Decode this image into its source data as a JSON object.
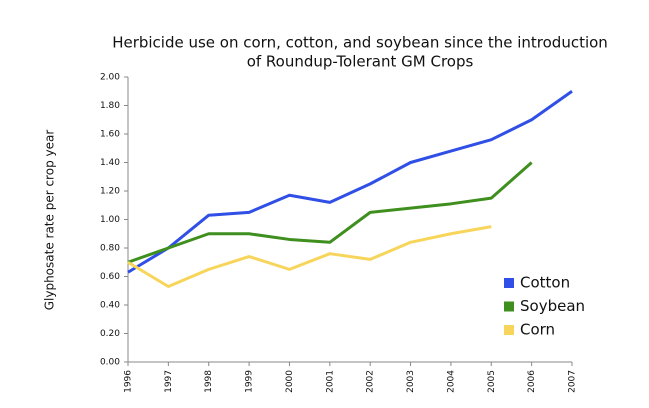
{
  "chart_data": {
    "type": "line",
    "title": [
      "Herbicide use on corn, cotton, and soybean since the introduction",
      "of Roundup-Tolerant GM Crops"
    ],
    "y_label": "Glyphosate rate per crop year",
    "x": [
      1996,
      1997,
      1998,
      1999,
      2000,
      2001,
      2002,
      2003,
      2004,
      2005,
      2006,
      2007
    ],
    "xlim": [
      1996,
      2007
    ],
    "xticks": [
      1996,
      1997,
      1998,
      1999,
      2000,
      2001,
      2002,
      2003,
      2004,
      2005,
      2006,
      2007
    ],
    "ylim": [
      0,
      2
    ],
    "yticks": [
      {
        "value": 0,
        "label": "0.00"
      },
      {
        "value": 0.2,
        "label": "0.20"
      },
      {
        "value": 0.4,
        "label": "0.40"
      },
      {
        "value": 0.6,
        "label": "0.60"
      },
      {
        "value": 0.8,
        "label": "0.80"
      },
      {
        "value": 1,
        "label": "1.00"
      },
      {
        "value": 1.2,
        "label": "1.20"
      },
      {
        "value": 1.4,
        "label": "1.40"
      },
      {
        "value": 1.6,
        "label": "1.60"
      },
      {
        "value": 1.8,
        "label": "1.80"
      },
      {
        "value": 2,
        "label": "2.00"
      }
    ],
    "grid": false,
    "legend": "lower right",
    "series": [
      {
        "name": "Cotton",
        "color": "#2f4fe6",
        "values": [
          0.63,
          0.8,
          1.03,
          1.05,
          1.17,
          1.12,
          1.25,
          1.4,
          1.48,
          1.56,
          1.7,
          1.9
        ]
      },
      {
        "name": "Soybean",
        "color": "#3f8f1f",
        "values": [
          0.7,
          0.8,
          0.9,
          0.9,
          0.86,
          0.84,
          1.05,
          1.08,
          1.11,
          1.15,
          1.4,
          null
        ]
      },
      {
        "name": "Corn",
        "color": "#f7d55a",
        "values": [
          0.7,
          0.53,
          0.65,
          0.74,
          0.65,
          0.76,
          0.72,
          0.84,
          0.9,
          0.95,
          null,
          null
        ]
      }
    ]
  }
}
